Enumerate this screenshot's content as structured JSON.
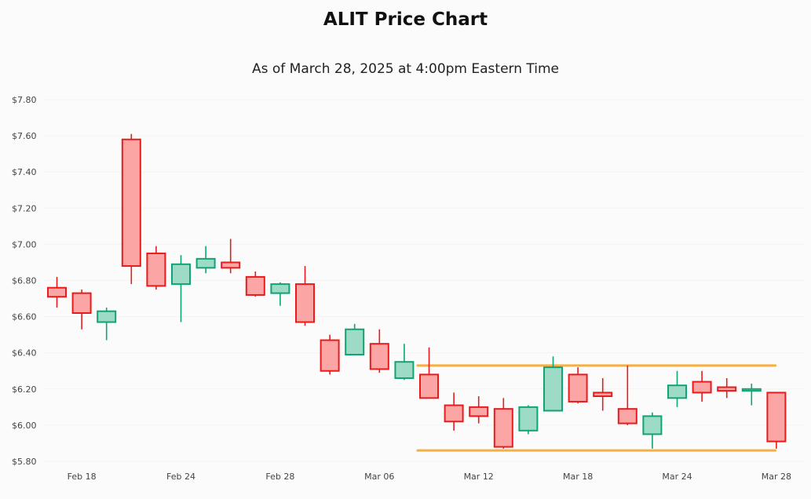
{
  "chart_data": {
    "type": "candlestick",
    "title": "ALIT Price Chart",
    "subtitle": "As of March 28, 2025 at 4:00pm Eastern Time",
    "ylim": [
      5.8,
      7.8
    ],
    "y_ticks": [
      "$7.80",
      "$7.60",
      "$7.40",
      "$7.20",
      "$7.00",
      "$6.80",
      "$6.60",
      "$6.40",
      "$6.20",
      "$6.00",
      "$5.80"
    ],
    "y_tick_values": [
      7.8,
      7.6,
      7.4,
      7.2,
      7.0,
      6.8,
      6.6,
      6.4,
      6.2,
      6.0,
      5.8
    ],
    "x_tick_labels": [
      {
        "label": "Feb 18",
        "index": 1
      },
      {
        "label": "Feb 24",
        "index": 5
      },
      {
        "label": "Feb 28",
        "index": 9
      },
      {
        "label": "Mar 06",
        "index": 13
      },
      {
        "label": "Mar 12",
        "index": 17
      },
      {
        "label": "Mar 18",
        "index": 21
      },
      {
        "label": "Mar 24",
        "index": 25
      },
      {
        "label": "Mar 28",
        "index": 29
      }
    ],
    "colors": {
      "up_fill": "#9edbc7",
      "up_stroke": "#11a373",
      "down_fill": "#fca5a5",
      "down_stroke": "#e81c1c",
      "level_line": "#f5b041"
    },
    "candles": [
      {
        "o": 6.76,
        "h": 6.82,
        "l": 6.65,
        "c": 6.71
      },
      {
        "o": 6.73,
        "h": 6.75,
        "l": 6.53,
        "c": 6.62
      },
      {
        "o": 6.57,
        "h": 6.65,
        "l": 6.47,
        "c": 6.63
      },
      {
        "o": 7.58,
        "h": 7.61,
        "l": 6.78,
        "c": 6.88
      },
      {
        "o": 6.95,
        "h": 6.99,
        "l": 6.75,
        "c": 6.77
      },
      {
        "o": 6.78,
        "h": 6.94,
        "l": 6.57,
        "c": 6.89
      },
      {
        "o": 6.87,
        "h": 6.99,
        "l": 6.84,
        "c": 6.92
      },
      {
        "o": 6.9,
        "h": 7.03,
        "l": 6.84,
        "c": 6.87
      },
      {
        "o": 6.82,
        "h": 6.85,
        "l": 6.71,
        "c": 6.72
      },
      {
        "o": 6.73,
        "h": 6.79,
        "l": 6.66,
        "c": 6.78
      },
      {
        "o": 6.78,
        "h": 6.88,
        "l": 6.55,
        "c": 6.57
      },
      {
        "o": 6.47,
        "h": 6.5,
        "l": 6.28,
        "c": 6.3
      },
      {
        "o": 6.39,
        "h": 6.56,
        "l": 6.39,
        "c": 6.53
      },
      {
        "o": 6.45,
        "h": 6.53,
        "l": 6.29,
        "c": 6.31
      },
      {
        "o": 6.26,
        "h": 6.45,
        "l": 6.25,
        "c": 6.35
      },
      {
        "o": 6.28,
        "h": 6.43,
        "l": 6.15,
        "c": 6.15
      },
      {
        "o": 6.11,
        "h": 6.18,
        "l": 5.97,
        "c": 6.02
      },
      {
        "o": 6.1,
        "h": 6.16,
        "l": 6.01,
        "c": 6.05
      },
      {
        "o": 6.09,
        "h": 6.15,
        "l": 5.87,
        "c": 5.88
      },
      {
        "o": 5.97,
        "h": 6.11,
        "l": 5.95,
        "c": 6.1
      },
      {
        "o": 6.08,
        "h": 6.38,
        "l": 6.08,
        "c": 6.32
      },
      {
        "o": 6.28,
        "h": 6.32,
        "l": 6.12,
        "c": 6.13
      },
      {
        "o": 6.18,
        "h": 6.26,
        "l": 6.08,
        "c": 6.16
      },
      {
        "o": 6.09,
        "h": 6.33,
        "l": 6.0,
        "c": 6.01
      },
      {
        "o": 5.95,
        "h": 6.07,
        "l": 5.87,
        "c": 6.05
      },
      {
        "o": 6.15,
        "h": 6.3,
        "l": 6.1,
        "c": 6.22
      },
      {
        "o": 6.24,
        "h": 6.3,
        "l": 6.13,
        "c": 6.18
      },
      {
        "o": 6.21,
        "h": 6.26,
        "l": 6.15,
        "c": 6.19
      },
      {
        "o": 6.19,
        "h": 6.23,
        "l": 6.11,
        "c": 6.2
      },
      {
        "o": 6.18,
        "h": 6.18,
        "l": 5.87,
        "c": 5.91
      }
    ],
    "level_lines": [
      {
        "value": 6.33,
        "start_index": 14.5,
        "end_index": 29
      },
      {
        "value": 5.86,
        "start_index": 14.5,
        "end_index": 29
      }
    ]
  }
}
